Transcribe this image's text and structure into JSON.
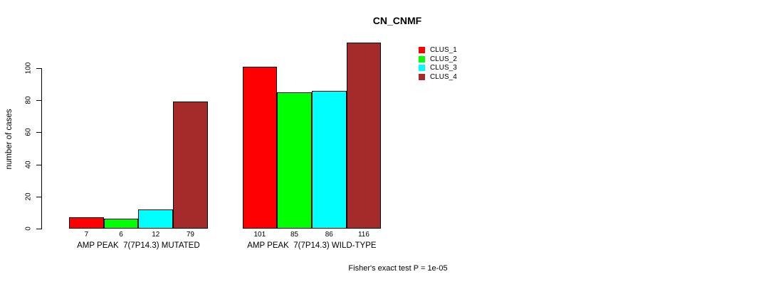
{
  "chart_data": {
    "type": "bar",
    "title": "CN_CNMF",
    "ylabel": "number of cases",
    "xlabel": "",
    "note": "Fisher's exact test P = 1e-05",
    "grid": false,
    "legend_position": "top-right",
    "y_ticks": [
      0,
      20,
      40,
      60,
      80,
      100
    ],
    "ylim": [
      0,
      116
    ],
    "categories": [
      "AMP PEAK  7(7P14.3) MUTATED",
      "AMP PEAK  7(7P14.3) WILD-TYPE"
    ],
    "series": [
      {
        "name": "CLUS_1",
        "color": "#FF0000",
        "values": [
          7,
          101
        ]
      },
      {
        "name": "CLUS_2",
        "color": "#00FF00",
        "values": [
          6,
          85
        ]
      },
      {
        "name": "CLUS_3",
        "color": "#00FFFF",
        "values": [
          12,
          86
        ]
      },
      {
        "name": "CLUS_4",
        "color": "#A52A2A",
        "values": [
          79,
          116
        ]
      }
    ],
    "bar_value_labels": [
      [
        "7",
        "6",
        "12",
        "79"
      ],
      [
        "101",
        "85",
        "86",
        "116"
      ]
    ]
  }
}
